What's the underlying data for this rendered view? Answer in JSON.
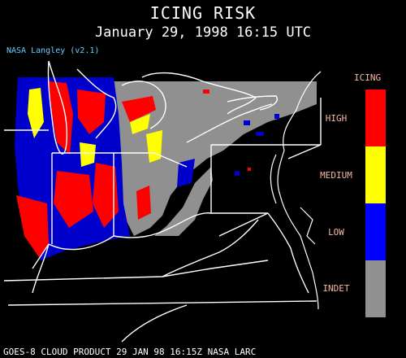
{
  "title": "ICING RISK",
  "subtitle": "January 29, 1998 16:15 UTC",
  "version_label": "NASA Langley (v2.1)",
  "footer": "GOES-8 CLOUD PRODUCT   29 JAN 98 16:15Z NASA LARC",
  "legend": {
    "title": "ICING",
    "levels": [
      {
        "label": "HIGH",
        "color": "#ff0000"
      },
      {
        "label": "MEDIUM",
        "color": "#ffff00"
      },
      {
        "label": "LOW",
        "color": "#0000ff"
      },
      {
        "label": "INDET",
        "color": "#909090"
      }
    ]
  },
  "colors": {
    "background": "#000000",
    "borders": "#ffffff",
    "label_text": "#f5b8a0",
    "version_text": "#66ccff",
    "no_data": "#909090"
  }
}
